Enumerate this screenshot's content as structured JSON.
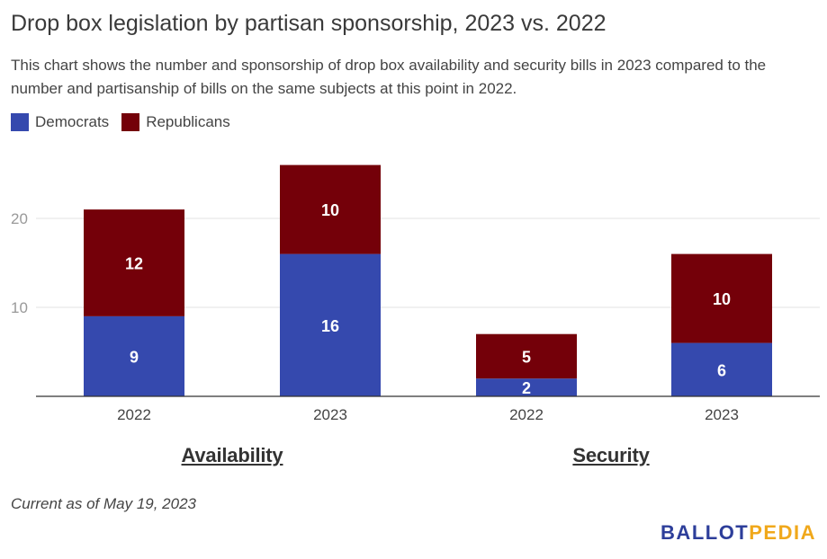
{
  "title": "Drop box legislation by partisan sponsorship, 2023 vs. 2022",
  "subtitle": "This chart shows the number and sponsorship of drop box availability and security bills in 2023 compared to the number and partisanship of bills on the same subjects at this point in 2022.",
  "legend": {
    "items": [
      {
        "label": "Democrats",
        "color": "#3549AE"
      },
      {
        "label": "Republicans",
        "color": "#740009"
      }
    ]
  },
  "groups": [
    {
      "label": "Availability"
    },
    {
      "label": "Security"
    }
  ],
  "note": "Current as of May 19, 2023",
  "logo": {
    "part1": "BALLOT",
    "part2": "PEDIA",
    "color1": "#2D3E9A",
    "color2": "#F0A81B"
  },
  "chart_data": {
    "type": "bar",
    "stacked": true,
    "categories": [
      "2022",
      "2023",
      "2022",
      "2023"
    ],
    "category_groups": [
      "Availability",
      "Availability",
      "Security",
      "Security"
    ],
    "series": [
      {
        "name": "Democrats",
        "color": "#3549AE",
        "values": [
          9,
          16,
          2,
          6
        ]
      },
      {
        "name": "Republicans",
        "color": "#740009",
        "values": [
          12,
          10,
          5,
          10
        ]
      }
    ],
    "yticks": [
      10,
      20
    ],
    "ylim": [
      0,
      28
    ],
    "grid": true,
    "legend_position": "top-left"
  }
}
